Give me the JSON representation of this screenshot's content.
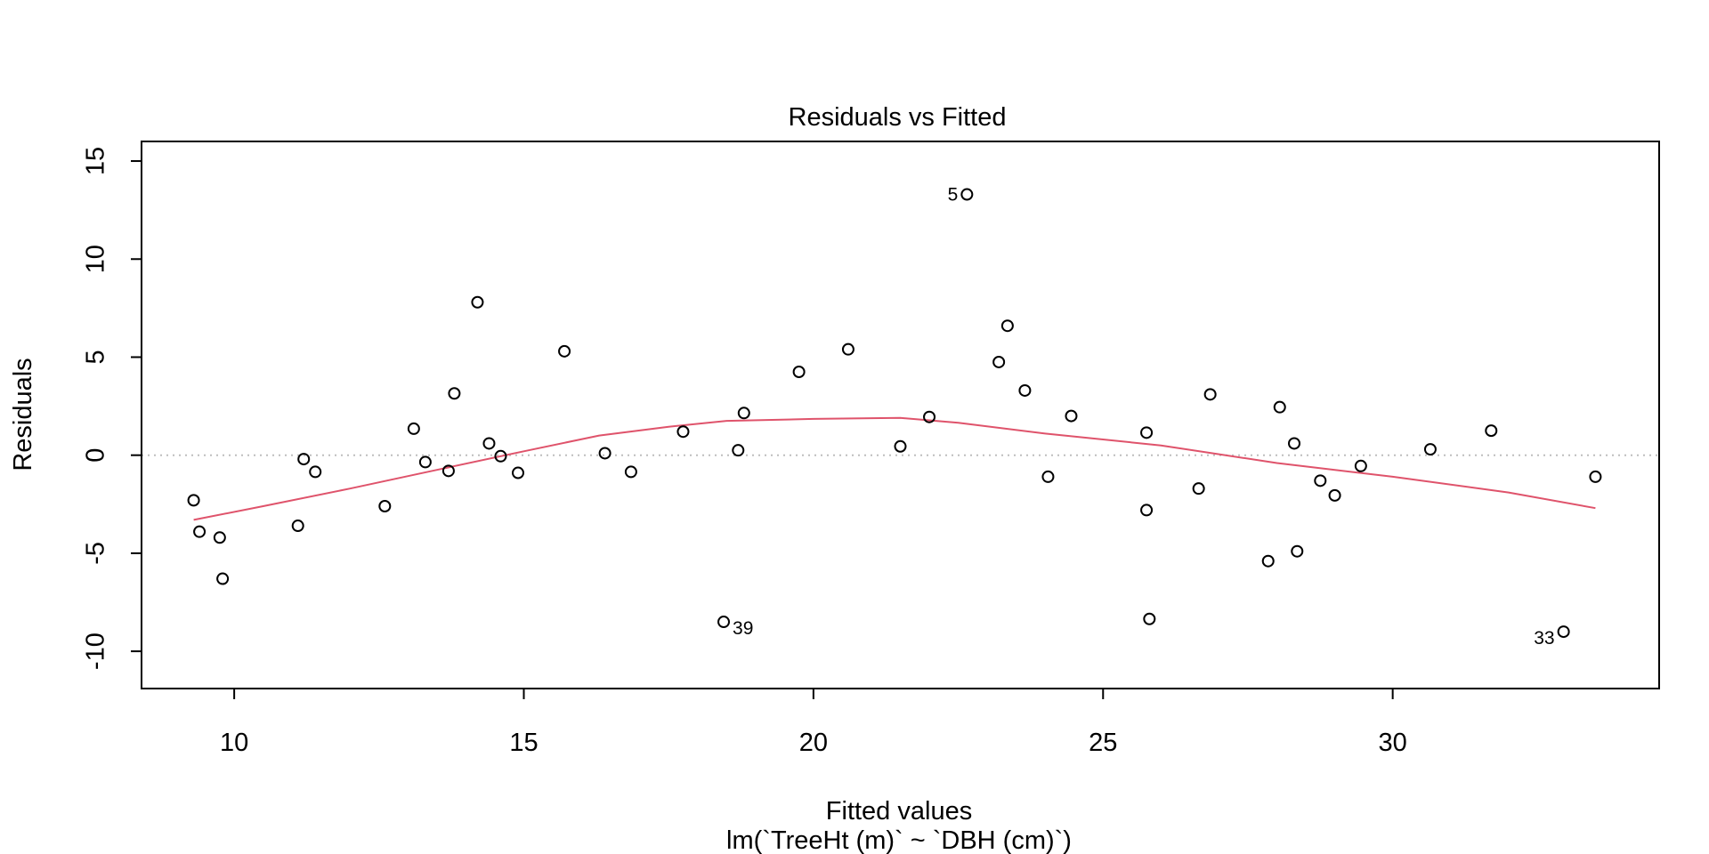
{
  "chart_data": {
    "type": "scatter",
    "title": "Residuals vs Fitted",
    "xlabel": "Fitted values",
    "subtitle": "lm(`TreeHt (m)` ~ `DBH (cm)`)",
    "ylabel": "Residuals",
    "xlim": [
      8.4,
      34.6
    ],
    "ylim": [
      -11.9,
      16.0
    ],
    "xticks": [
      10,
      15,
      20,
      25,
      30
    ],
    "yticks": [
      -10,
      -5,
      0,
      5,
      10,
      15
    ],
    "reference_line": {
      "y": 0,
      "style": "dotted",
      "color": "#bebebe"
    },
    "points": [
      {
        "x": 9.3,
        "y": -2.3
      },
      {
        "x": 9.4,
        "y": -3.9
      },
      {
        "x": 9.75,
        "y": -4.2
      },
      {
        "x": 9.8,
        "y": -6.3
      },
      {
        "x": 11.1,
        "y": -3.6
      },
      {
        "x": 11.2,
        "y": -0.2
      },
      {
        "x": 11.4,
        "y": -0.85
      },
      {
        "x": 12.6,
        "y": -2.6
      },
      {
        "x": 13.1,
        "y": 1.35
      },
      {
        "x": 13.3,
        "y": -0.35
      },
      {
        "x": 13.7,
        "y": -0.8
      },
      {
        "x": 13.8,
        "y": 3.15
      },
      {
        "x": 14.2,
        "y": 7.8
      },
      {
        "x": 14.4,
        "y": 0.6
      },
      {
        "x": 14.6,
        "y": -0.05
      },
      {
        "x": 14.9,
        "y": -0.9
      },
      {
        "x": 15.7,
        "y": 5.3
      },
      {
        "x": 16.4,
        "y": 0.1
      },
      {
        "x": 16.85,
        "y": -0.85
      },
      {
        "x": 17.75,
        "y": 1.2
      },
      {
        "x": 18.45,
        "y": -8.5,
        "label": "39"
      },
      {
        "x": 18.7,
        "y": 0.25
      },
      {
        "x": 18.8,
        "y": 2.15
      },
      {
        "x": 19.75,
        "y": 4.25
      },
      {
        "x": 20.6,
        "y": 5.4
      },
      {
        "x": 21.5,
        "y": 0.45
      },
      {
        "x": 22.0,
        "y": 1.95
      },
      {
        "x": 22.65,
        "y": 13.3,
        "label": "5"
      },
      {
        "x": 23.2,
        "y": 4.75
      },
      {
        "x": 23.35,
        "y": 6.6
      },
      {
        "x": 23.65,
        "y": 3.3
      },
      {
        "x": 24.05,
        "y": -1.1
      },
      {
        "x": 24.45,
        "y": 2.0
      },
      {
        "x": 25.75,
        "y": 1.15
      },
      {
        "x": 25.75,
        "y": -2.8
      },
      {
        "x": 25.8,
        "y": -8.35
      },
      {
        "x": 26.65,
        "y": -1.7
      },
      {
        "x": 26.85,
        "y": 3.1
      },
      {
        "x": 27.85,
        "y": -5.4
      },
      {
        "x": 28.05,
        "y": 2.45
      },
      {
        "x": 28.3,
        "y": 0.6
      },
      {
        "x": 28.35,
        "y": -4.9
      },
      {
        "x": 28.75,
        "y": -1.3
      },
      {
        "x": 29.0,
        "y": -2.05
      },
      {
        "x": 29.45,
        "y": -0.55
      },
      {
        "x": 30.65,
        "y": 0.3
      },
      {
        "x": 31.7,
        "y": 1.25
      },
      {
        "x": 32.95,
        "y": -9.0,
        "label": "33"
      },
      {
        "x": 33.5,
        "y": -1.1
      }
    ],
    "smoother": {
      "color": "#df536b",
      "x": [
        9.3,
        10.5,
        12.0,
        13.5,
        15.0,
        16.3,
        17.5,
        18.5,
        20.0,
        21.5,
        22.5,
        24.0,
        26.0,
        28.0,
        30.0,
        32.0,
        33.5
      ],
      "y": [
        -3.3,
        -2.6,
        -1.7,
        -0.75,
        0.2,
        1.0,
        1.45,
        1.75,
        1.85,
        1.9,
        1.65,
        1.1,
        0.5,
        -0.4,
        -1.1,
        -1.9,
        -2.7
      ]
    }
  }
}
